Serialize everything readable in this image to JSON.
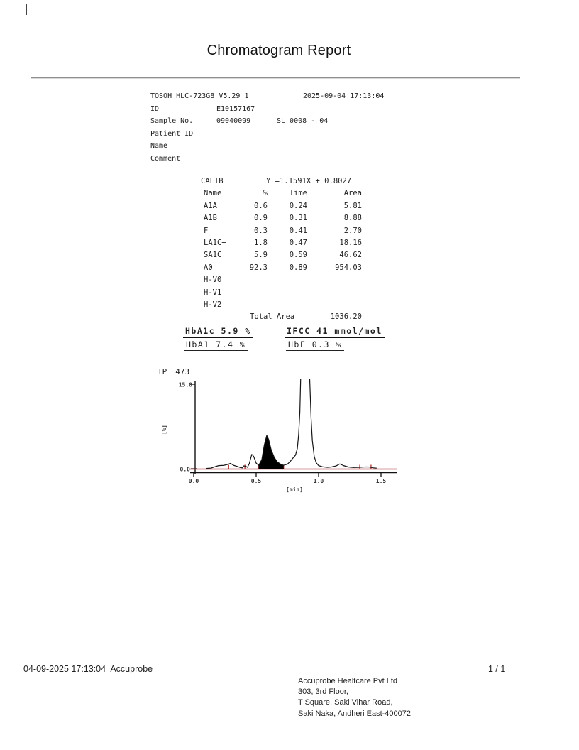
{
  "page": {
    "title": "Chromatogram Report"
  },
  "report": {
    "device_line": {
      "device": "TOSOH HLC-723G8  V5.29  1",
      "datetime": "2025-09-04 17:13:04"
    },
    "fields": [
      {
        "label": "ID",
        "value": "E10157167",
        "extra": ""
      },
      {
        "label": "Sample No.",
        "value": "09040099",
        "extra": "SL 0008 - 04"
      },
      {
        "label": "Patient ID",
        "value": "",
        "extra": ""
      },
      {
        "label": "Name",
        "value": "",
        "extra": ""
      },
      {
        "label": "Comment",
        "value": "",
        "extra": ""
      }
    ],
    "calib": {
      "label": "CALIB",
      "formula": "Y =1.1591X + 0.8027"
    },
    "table": {
      "headers": [
        "Name",
        "%",
        "Time",
        "Area"
      ],
      "rows": [
        {
          "name": "A1A",
          "pct": "0.6",
          "time": "0.24",
          "area": "5.81"
        },
        {
          "name": "A1B",
          "pct": "0.9",
          "time": "0.31",
          "area": "8.88"
        },
        {
          "name": "F",
          "pct": "0.3",
          "time": "0.41",
          "area": "2.70"
        },
        {
          "name": "LA1C+",
          "pct": "1.8",
          "time": "0.47",
          "area": "18.16"
        },
        {
          "name": "SA1C",
          "pct": "5.9",
          "time": "0.59",
          "area": "46.62"
        },
        {
          "name": "A0",
          "pct": "92.3",
          "time": "0.89",
          "area": "954.03"
        },
        {
          "name": "H-V0",
          "pct": "",
          "time": "",
          "area": ""
        },
        {
          "name": "H-V1",
          "pct": "",
          "time": "",
          "area": ""
        },
        {
          "name": "H-V2",
          "pct": "",
          "time": "",
          "area": ""
        }
      ]
    },
    "total_area": {
      "label": "Total Area",
      "value": "1036.20"
    },
    "results": {
      "hba1c": "HbA1c 5.9 %",
      "ifcc": "IFCC 41 mmol/mol",
      "hba1": "HbA1 7.4 %",
      "hbf": "HbF 0.3 %"
    },
    "tp": {
      "label": "TP",
      "value": "473"
    }
  },
  "chart_data": {
    "type": "line",
    "title": "TP 473",
    "xlabel": "[min]",
    "ylabel": "[%]",
    "xlim": [
      0,
      1.63
    ],
    "ylim": [
      0,
      15
    ],
    "x_ticks": [
      0.0,
      0.5,
      1.0,
      1.5
    ],
    "x_tick_labels": [
      "0.0",
      "0.5",
      "1.0",
      "1.5"
    ],
    "y_tick_labels": [
      "15.0",
      "0.0"
    ],
    "trace_color": "#141414",
    "baseline_color": "#b43d3d",
    "series": [
      {
        "name": "absorbance-trace",
        "x": [
          0.1,
          0.14,
          0.17,
          0.2,
          0.24,
          0.27,
          0.295,
          0.32,
          0.35,
          0.375,
          0.39,
          0.4,
          0.415,
          0.43,
          0.445,
          0.465,
          0.48,
          0.5,
          0.52,
          0.545,
          0.565,
          0.585,
          0.6,
          0.62,
          0.645,
          0.67,
          0.7,
          0.72,
          0.75,
          0.775,
          0.795,
          0.815,
          0.83,
          0.84,
          0.85,
          0.857,
          0.928,
          0.94,
          0.95,
          0.965,
          0.98,
          1.0,
          1.03,
          1.07,
          1.1,
          1.14,
          1.17,
          1.2,
          1.24,
          1.28,
          1.33,
          1.38,
          1.41,
          1.44,
          1.465
        ],
        "y": [
          0.05,
          0.12,
          0.35,
          0.55,
          0.6,
          0.75,
          0.95,
          0.6,
          0.4,
          0.2,
          0.15,
          0.5,
          0.45,
          0.25,
          0.9,
          2.55,
          2.2,
          1.0,
          0.6,
          1.6,
          4.2,
          5.9,
          5.2,
          3.4,
          2.0,
          1.2,
          0.75,
          0.62,
          0.8,
          1.35,
          1.9,
          2.4,
          3.6,
          6.0,
          10.0,
          16.5,
          16.5,
          9.0,
          5.0,
          2.2,
          1.1,
          0.55,
          0.35,
          0.25,
          0.3,
          0.5,
          0.85,
          0.55,
          0.3,
          0.22,
          0.25,
          0.32,
          0.3,
          0.15,
          0.1
        ]
      }
    ],
    "filled_peak": {
      "name": "SA1C",
      "x_range": [
        0.52,
        0.72
      ],
      "fill_color": "#000000"
    },
    "clipped_peak": {
      "name": "A0",
      "apex_time": 0.89
    },
    "peak_markers_min": [
      0.28,
      0.41,
      0.52,
      0.72,
      1.33,
      1.42
    ]
  },
  "footer": {
    "datetime": "04-09-2025 17:13:04",
    "operator": "Accuprobe",
    "page_indicator": "1 / 1",
    "address_lines": [
      "Accuprobe Healtcare Pvt Ltd",
      "303, 3rd Floor,",
      "T Square, Saki Vihar Road,",
      "Saki Naka, Andheri East-400072"
    ]
  }
}
